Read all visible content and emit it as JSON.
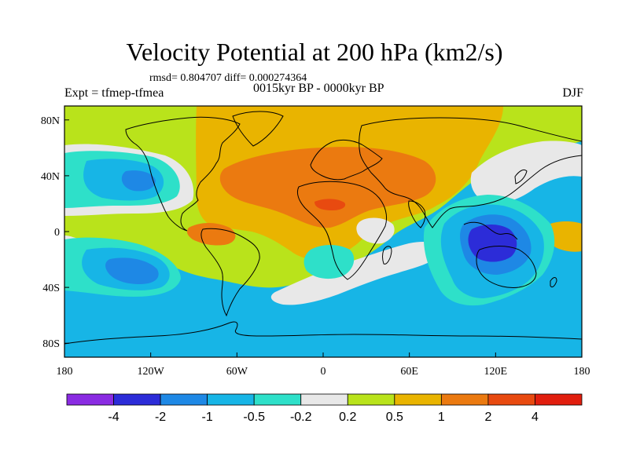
{
  "figure": {
    "title": "Velocity Potential at 200 hPa (km2/s)",
    "stats": "rmsd= 0.804707 diff= 0.000274364",
    "experiment": "Expt = tfmep-tfmea",
    "period": "0015kyr BP - 0000kyr BP",
    "season": "DJF"
  },
  "axes": {
    "x_ticks": [
      "180",
      "120W",
      "60W",
      "0",
      "60E",
      "120E",
      "180"
    ],
    "y_ticks": [
      "80N",
      "40N",
      "0",
      "40S",
      "80S"
    ]
  },
  "colorbar": {
    "labels": [
      "-4",
      "-2",
      "-1",
      "-0.5",
      "-0.2",
      "0.2",
      "0.5",
      "1",
      "2",
      "4"
    ],
    "colors": [
      "#8a2be2",
      "#2c2cd8",
      "#1e88e5",
      "#17b5e6",
      "#2ee0c9",
      "#e8e8e8",
      "#b9e31b",
      "#e9b400",
      "#eb7a10",
      "#e84a10",
      "#e11e0e"
    ]
  },
  "map_colors": {
    "ocean_base": "#17b5e6",
    "neutral": "#e8e8e8",
    "pos1": "#b9e31b",
    "pos2": "#e9b400",
    "pos3": "#eb7a10",
    "pos4": "#e84a10",
    "neg1": "#2ee0c9",
    "neg2": "#17b5e6",
    "neg3": "#1e88e5",
    "neg4": "#2c2cd8"
  }
}
